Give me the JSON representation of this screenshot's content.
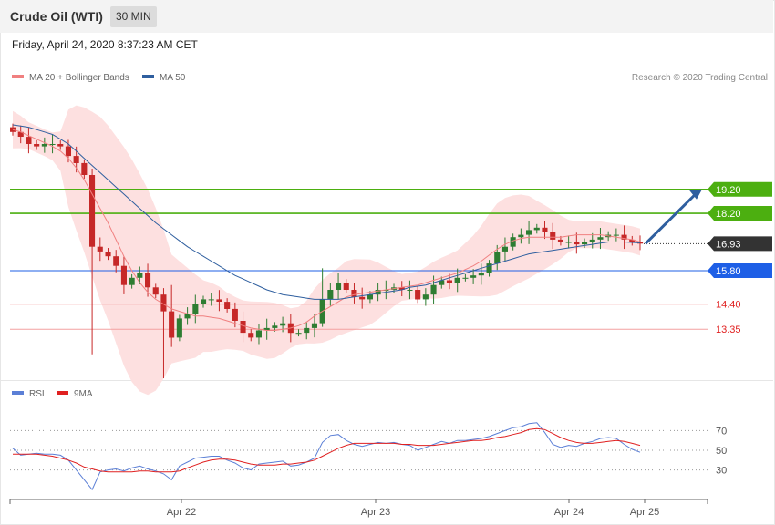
{
  "header": {
    "title": "Crude Oil (WTI)",
    "timeframe": "30 MIN"
  },
  "timestamp": "Friday, April 24, 2020 8:37:23 AM CET",
  "legend": {
    "ma20": {
      "label": "MA 20 + Bollinger Bands",
      "color": "#f08080"
    },
    "ma50": {
      "label": "MA 50",
      "color": "#2f5f9f"
    }
  },
  "copyright": "Research © 2020 Trading Central",
  "rsi_legend": {
    "rsi": {
      "label": "RSI",
      "color": "#5b7fd6"
    },
    "ma9": {
      "label": "9MA",
      "color": "#e02020"
    }
  },
  "colors": {
    "up": "#2e7d32",
    "down": "#c62828",
    "band": "#fde0e0",
    "resistance": "#4caf10",
    "support_blue": "#1e5fe6",
    "support_red": "#f4a0a0",
    "last": "#333333",
    "arrow": "#2f5f9f"
  },
  "chart_data": [
    {
      "type": "candlestick",
      "title": "Crude Oil (WTI)",
      "y_range": [
        11.3,
        23.5
      ],
      "x_labels": [
        "Apr 22",
        "Apr 23",
        "Apr 24",
        "Apr 25"
      ],
      "levels": [
        {
          "value": 19.2,
          "label": "19.20",
          "kind": "resistance"
        },
        {
          "value": 18.2,
          "label": "18.20",
          "kind": "resistance"
        },
        {
          "value": 16.93,
          "label": "16.93",
          "kind": "last"
        },
        {
          "value": 15.8,
          "label": "15.80",
          "kind": "support_blue"
        },
        {
          "value": 14.4,
          "label": "14.40",
          "kind": "support_red"
        },
        {
          "value": 13.35,
          "label": "13.35",
          "kind": "support_red"
        }
      ],
      "projection": {
        "from": 16.93,
        "to": 19.2
      },
      "closes": [
        21.6,
        21.4,
        21.1,
        21.0,
        21.1,
        21.1,
        21.0,
        20.6,
        20.3,
        19.8,
        16.8,
        16.6,
        16.4,
        16.0,
        15.2,
        15.5,
        15.7,
        15.1,
        14.8,
        14.1,
        13.0,
        13.8,
        14.0,
        14.4,
        14.6,
        14.6,
        14.5,
        14.2,
        13.7,
        13.2,
        13.0,
        13.3,
        13.4,
        13.5,
        13.6,
        13.2,
        13.2,
        13.4,
        13.6,
        14.6,
        15.0,
        15.3,
        15.0,
        14.7,
        14.6,
        14.8,
        15.0,
        15.0,
        15.1,
        15.0,
        15.0,
        14.6,
        14.8,
        15.2,
        15.4,
        15.3,
        15.5,
        15.5,
        15.6,
        15.7,
        16.1,
        16.6,
        16.8,
        17.2,
        17.3,
        17.5,
        17.6,
        17.4,
        17.1,
        17.0,
        17.0,
        16.9,
        17.0,
        17.1,
        17.2,
        17.3,
        17.3,
        17.1,
        17.0,
        16.93
      ],
      "ma20": [
        21.7,
        21.6,
        21.45,
        21.3,
        21.15,
        21.0,
        20.8,
        20.5,
        20.1,
        19.6,
        19.0,
        18.4,
        17.8,
        17.1,
        16.4,
        15.8,
        15.3,
        14.9,
        14.6,
        14.4,
        14.2,
        14.1,
        14.0,
        13.9,
        13.9,
        13.85,
        13.8,
        13.7,
        13.6,
        13.5,
        13.4,
        13.35,
        13.3,
        13.3,
        13.35,
        13.4,
        13.5,
        13.65,
        13.9,
        14.1,
        14.3,
        14.5,
        14.7,
        14.8,
        14.85,
        14.9,
        14.95,
        15.0,
        15.05,
        15.1,
        15.15,
        15.2,
        15.3,
        15.4,
        15.5,
        15.6,
        15.7,
        15.85,
        16.0,
        16.2,
        16.45,
        16.7,
        16.9,
        17.05,
        17.15,
        17.2,
        17.2,
        17.2,
        17.2,
        17.2,
        17.25,
        17.3,
        17.3,
        17.3,
        17.3,
        17.25,
        17.2,
        17.15,
        17.1,
        17.0
      ],
      "ma50": [
        21.9,
        21.85,
        21.8,
        21.7,
        21.6,
        21.5,
        21.3,
        21.1,
        20.8,
        20.5,
        20.2,
        19.9,
        19.6,
        19.3,
        19.0,
        18.7,
        18.4,
        18.1,
        17.8,
        17.55,
        17.3,
        17.05,
        16.8,
        16.6,
        16.4,
        16.2,
        16.0,
        15.8,
        15.6,
        15.45,
        15.3,
        15.15,
        15.0,
        14.9,
        14.8,
        14.75,
        14.7,
        14.65,
        14.6,
        14.6,
        14.6,
        14.6,
        14.65,
        14.7,
        14.75,
        14.8,
        14.85,
        14.9,
        14.95,
        15.0,
        15.1,
        15.15,
        15.2,
        15.3,
        15.4,
        15.5,
        15.6,
        15.7,
        15.8,
        15.9,
        16.0,
        16.1,
        16.2,
        16.3,
        16.4,
        16.5,
        16.55,
        16.6,
        16.65,
        16.7,
        16.75,
        16.8,
        16.85,
        16.9,
        16.95,
        17.0,
        17.0,
        17.0,
        16.98,
        16.96
      ]
    },
    {
      "type": "line",
      "title": "RSI",
      "y_range": [
        0,
        100
      ],
      "ticks": [
        "70",
        "50",
        "30"
      ],
      "series": [
        {
          "name": "RSI",
          "values": [
            52,
            45,
            46,
            47,
            46,
            46,
            45,
            40,
            30,
            20,
            10,
            28,
            30,
            31,
            29,
            32,
            34,
            31,
            29,
            26,
            20,
            34,
            38,
            42,
            43,
            44,
            44,
            40,
            37,
            32,
            30,
            36,
            37,
            38,
            39,
            34,
            35,
            38,
            42,
            58,
            65,
            66,
            60,
            56,
            54,
            56,
            58,
            57,
            58,
            56,
            55,
            50,
            53,
            56,
            59,
            57,
            60,
            60,
            61,
            62,
            64,
            67,
            70,
            73,
            74,
            77,
            78,
            68,
            56,
            53,
            55,
            54,
            57,
            59,
            62,
            63,
            62,
            56,
            51,
            48
          ]
        },
        {
          "name": "9MA",
          "values": [
            46,
            46,
            46,
            46,
            45,
            44,
            42,
            40,
            37,
            33,
            31,
            29,
            28,
            28,
            28,
            28,
            29,
            29,
            28,
            28,
            28,
            29,
            32,
            35,
            38,
            40,
            41,
            41,
            40,
            38,
            36,
            35,
            35,
            35,
            36,
            36,
            37,
            38,
            40,
            44,
            48,
            52,
            55,
            57,
            57,
            57,
            57,
            57,
            57,
            56,
            56,
            55,
            55,
            55,
            56,
            57,
            58,
            59,
            60,
            60,
            61,
            63,
            64,
            66,
            68,
            71,
            72,
            71,
            67,
            63,
            60,
            58,
            57,
            57,
            58,
            59,
            60,
            59,
            57,
            55
          ]
        }
      ]
    }
  ]
}
